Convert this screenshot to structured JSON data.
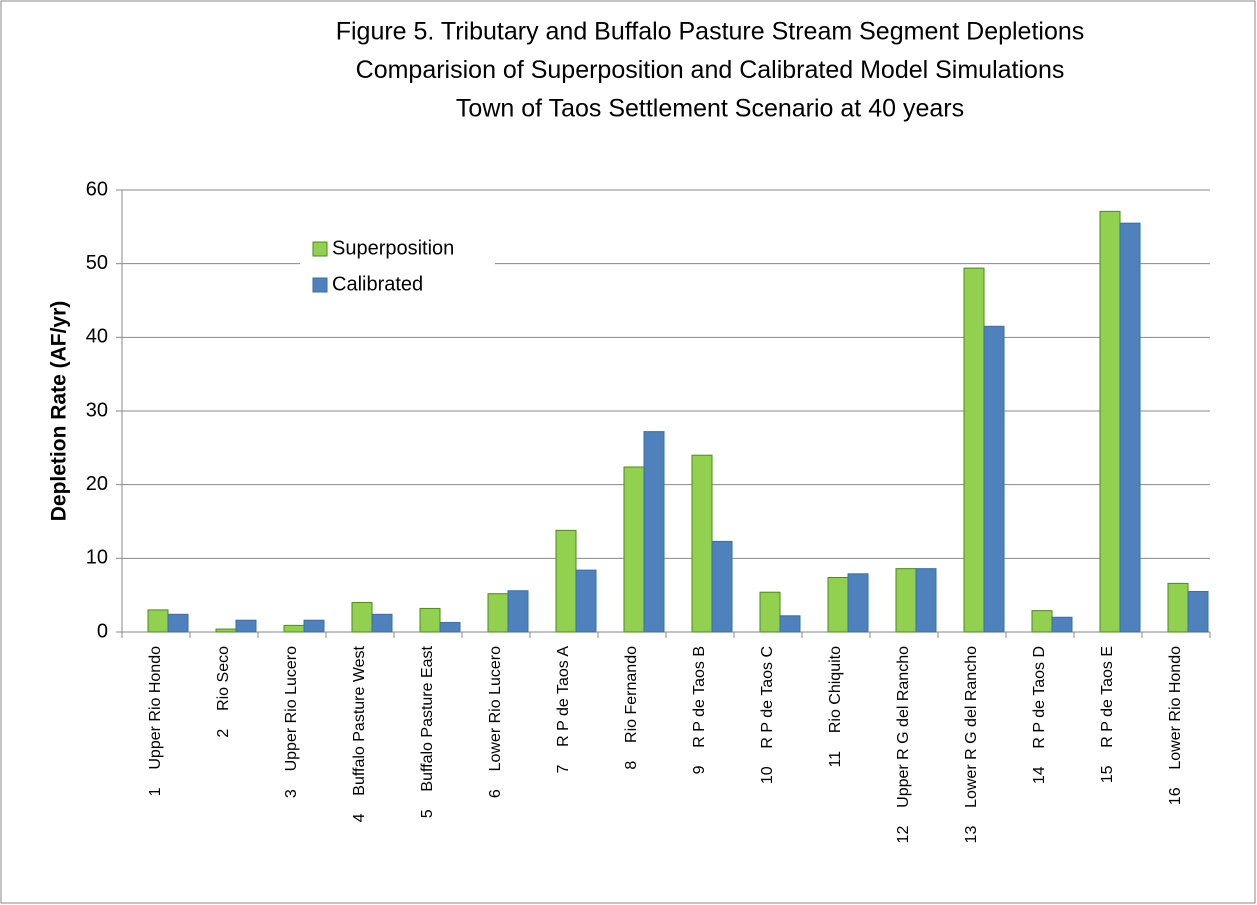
{
  "chart_data": {
    "type": "bar",
    "title": [
      "Figure 5. Tributary and Buffalo Pasture Stream Segment Depletions",
      "Comparision of Superposition and Calibrated Model Simulations",
      "Town of Taos Settlement Scenario at 40 years"
    ],
    "y_label": "Depletion Rate   (AF/yr)",
    "categories": [
      "1    Upper Rio Hondo",
      "2    Rio Seco",
      "3    Upper Rio Lucero",
      "4    Buffalo Pasture West",
      "5    Buffalo Pasture East",
      "6    Lower Rio Lucero",
      "7    R P de Taos A",
      "8    Rio Fernando",
      "9    R P de Taos B",
      "10    R P de Taos C",
      "11    Rio Chiquito",
      "12    Upper R G del Rancho",
      "13    Lower R G del Rancho",
      "14    R P de Taos D",
      "15    R P de Taos E",
      "16    Lower Rio Hondo"
    ],
    "series": [
      {
        "name": "Superposition",
        "color": "#92d050",
        "values": [
          3.0,
          0.4,
          0.9,
          4.0,
          3.2,
          5.2,
          13.8,
          22.4,
          24.0,
          5.4,
          7.4,
          8.6,
          49.4,
          2.9,
          57.1,
          6.6
        ]
      },
      {
        "name": "Calibrated",
        "color": "#4f81bd",
        "values": [
          2.4,
          1.6,
          1.6,
          2.4,
          1.3,
          5.6,
          8.4,
          27.2,
          12.3,
          2.2,
          7.9,
          8.6,
          41.5,
          2.0,
          55.5,
          5.5
        ]
      }
    ],
    "ylim": [
      0,
      60
    ],
    "yticks": [
      0,
      10,
      20,
      30,
      40,
      50,
      60
    ],
    "grid": true,
    "legend": "upper-left"
  }
}
